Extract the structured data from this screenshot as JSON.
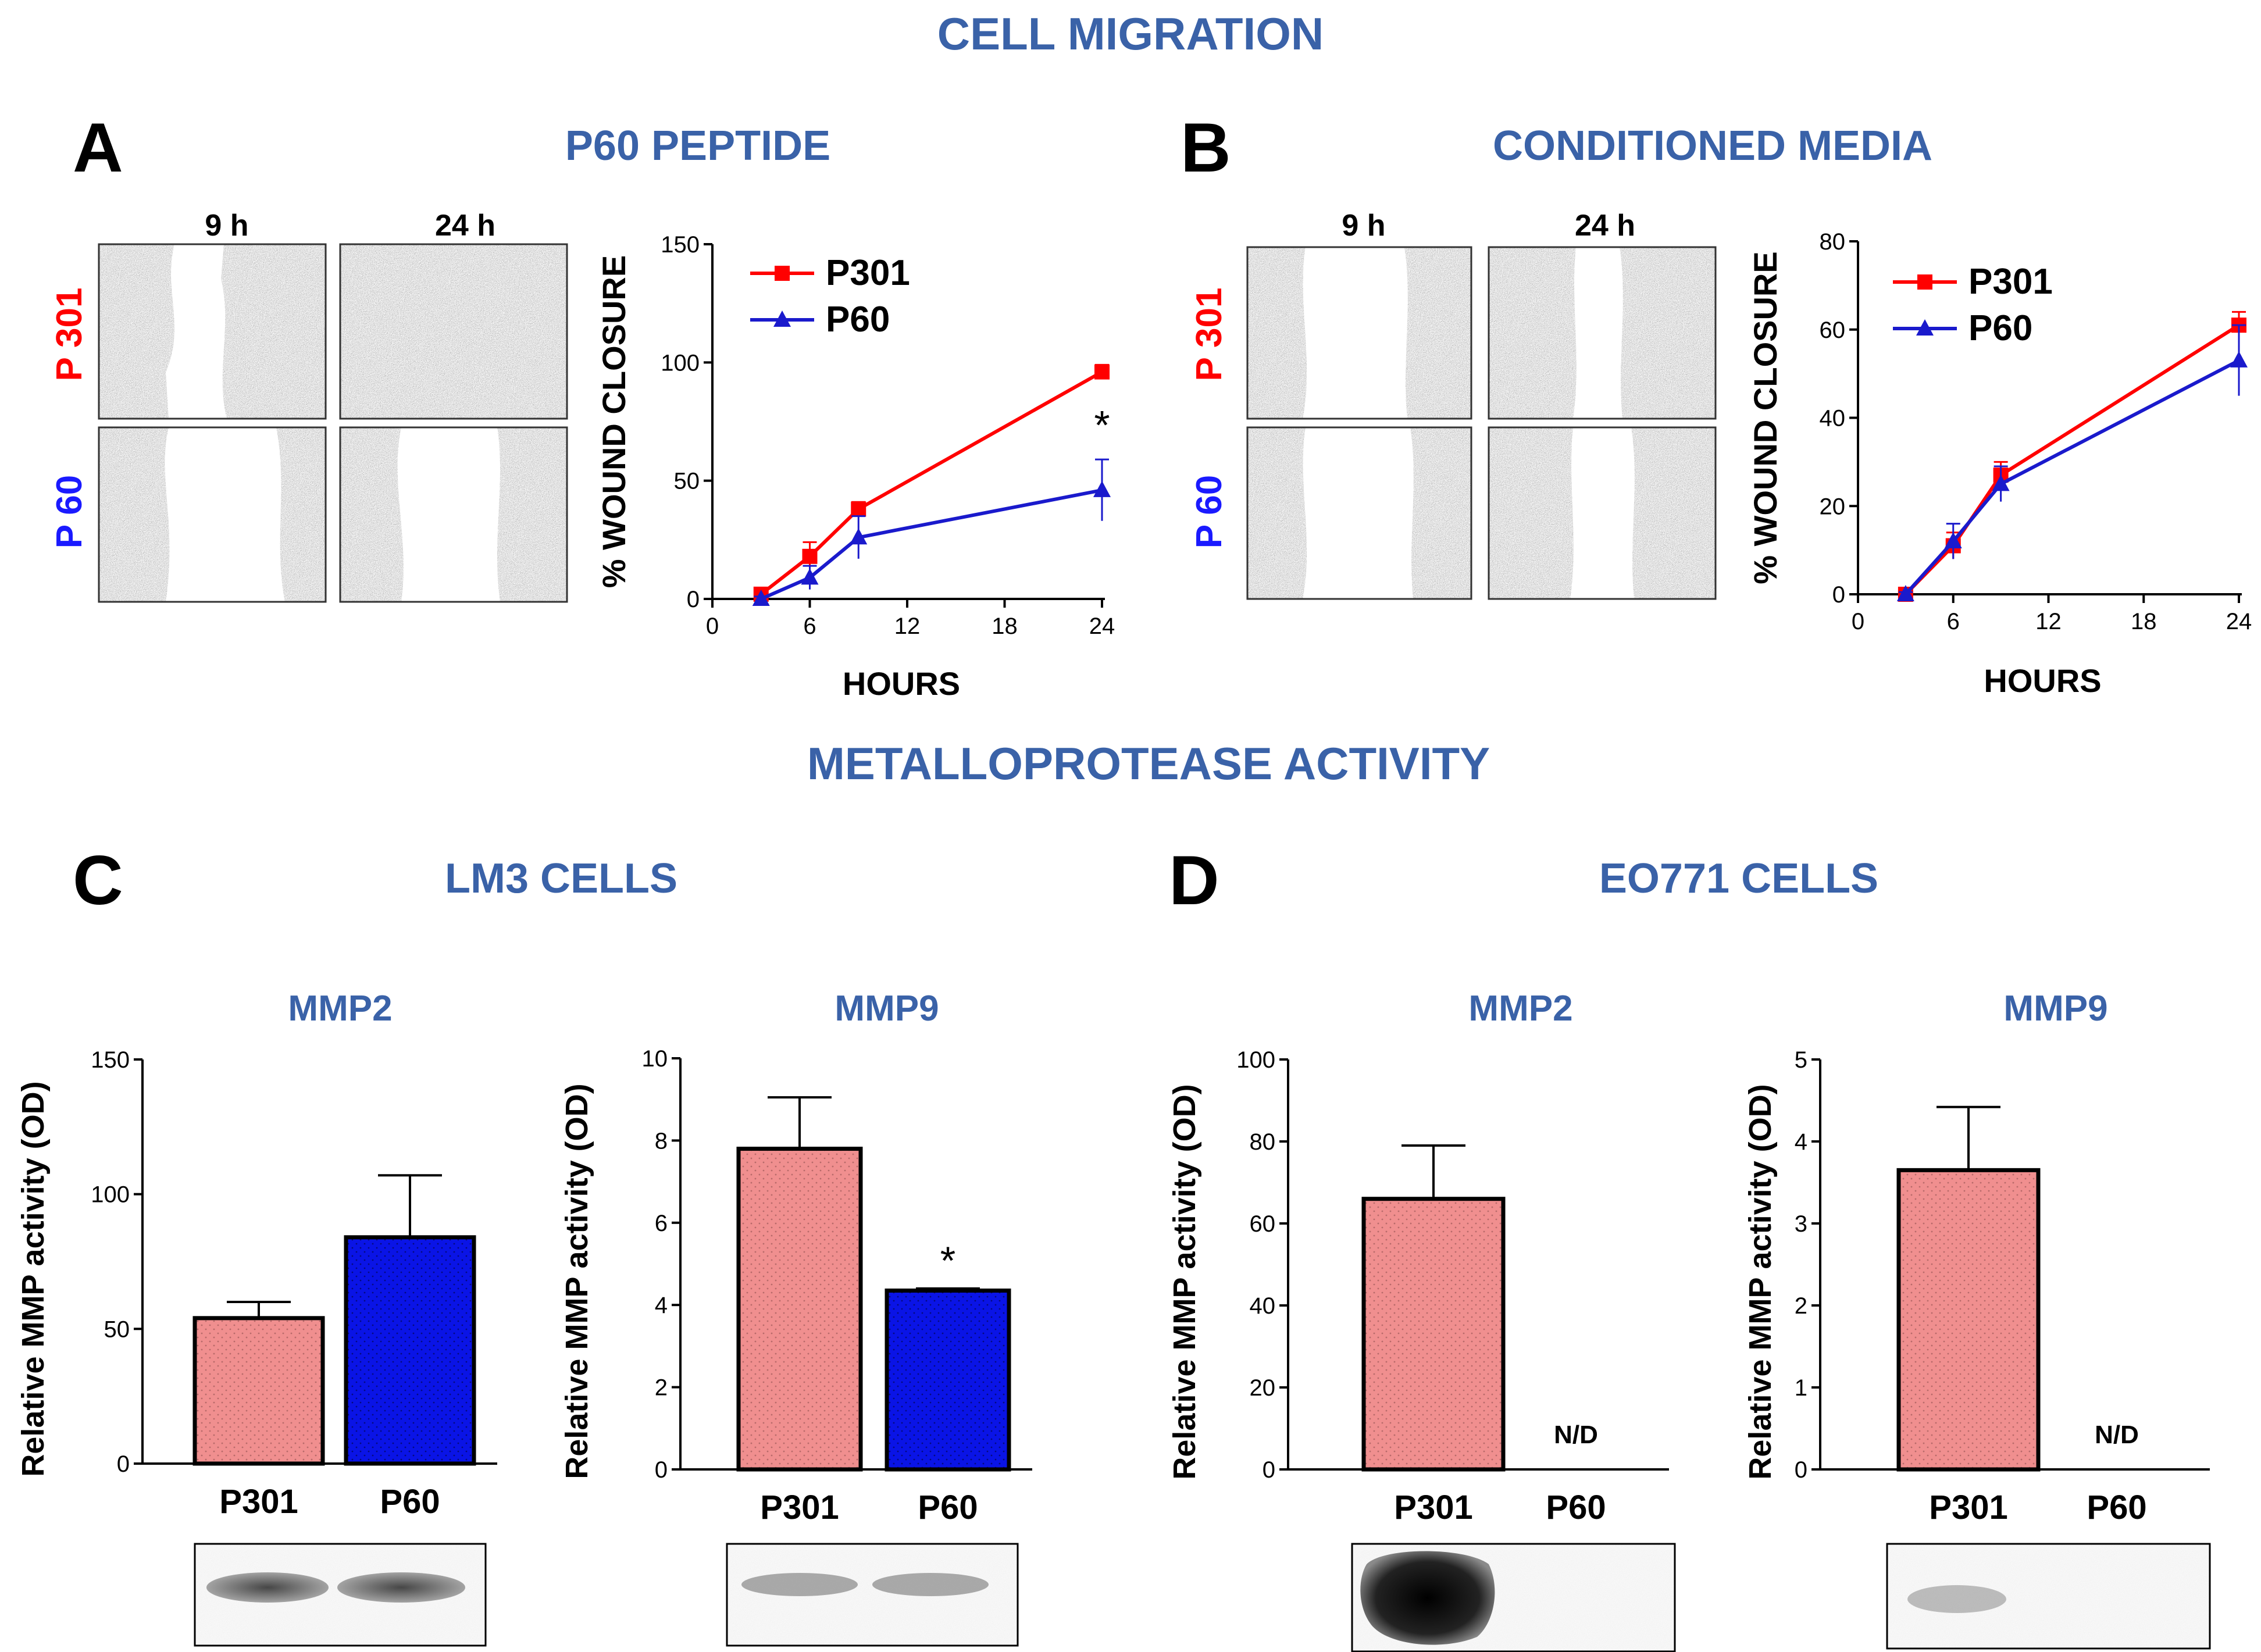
{
  "headings": {
    "cell_migration": "CELL MIGRATION",
    "metalloprotease": "METALLOPROTEASE ACTIVITY"
  },
  "panels": {
    "A": {
      "letter": "A",
      "title": "P60 PEPTIDE"
    },
    "B": {
      "letter": "B",
      "title": "CONDITIONED MEDIA"
    },
    "C": {
      "letter": "C",
      "title": "LM3 CELLS"
    },
    "D": {
      "letter": "D",
      "title": "EO771 CELLS"
    }
  },
  "micrographs": {
    "time_9h": "9 h",
    "time_24h": "24 h",
    "row_p301": "P 301",
    "row_p60": "P 60"
  },
  "colors": {
    "title_blue": "#3a62a8",
    "p301_red": "#ff0000",
    "p60_blue": "#1a1acc",
    "bar_pink": "#f08f8f",
    "bar_blue": "#0a14e6"
  },
  "chart_data": [
    {
      "id": "A",
      "type": "line",
      "xlabel": "HOURS",
      "ylabel": "% WOUND CLOSURE",
      "xlim": [
        0,
        24
      ],
      "ylim": [
        0,
        150
      ],
      "xticks": [
        0,
        6,
        12,
        18,
        24
      ],
      "yticks": [
        0,
        50,
        100,
        150
      ],
      "legend_position": "top-left",
      "annotation": "*",
      "series": [
        {
          "name": "P301",
          "marker": "square",
          "x": [
            3,
            6,
            9,
            24
          ],
          "y": [
            2,
            18,
            38,
            96
          ],
          "err": [
            1,
            6,
            3,
            3
          ]
        },
        {
          "name": "P60",
          "marker": "triangle",
          "x": [
            3,
            6,
            9,
            24
          ],
          "y": [
            0,
            9,
            26,
            46
          ],
          "err": [
            1,
            5,
            9,
            13
          ]
        }
      ]
    },
    {
      "id": "B",
      "type": "line",
      "xlabel": "HOURS",
      "ylabel": "% WOUND CLOSURE",
      "xlim": [
        0,
        24
      ],
      "ylim": [
        0,
        80
      ],
      "xticks": [
        0,
        6,
        12,
        18,
        24
      ],
      "yticks": [
        0,
        20,
        40,
        60,
        80
      ],
      "legend_position": "top-left",
      "series": [
        {
          "name": "P301",
          "marker": "square",
          "x": [
            3,
            6,
            9,
            24
          ],
          "y": [
            0,
            11,
            27,
            61
          ],
          "err": [
            0.5,
            3,
            3,
            3
          ]
        },
        {
          "name": "P60",
          "marker": "triangle",
          "x": [
            3,
            6,
            9,
            24
          ],
          "y": [
            0,
            12,
            25,
            53
          ],
          "err": [
            0.5,
            4,
            4,
            8
          ]
        }
      ]
    },
    {
      "id": "C-MMP2",
      "type": "bar",
      "title": "MMP2",
      "ylabel": "Relative MMP activity (OD)",
      "categories": [
        "P301",
        "P60"
      ],
      "values": [
        54,
        84
      ],
      "err": [
        6,
        23
      ],
      "ylim": [
        0,
        150
      ],
      "yticks": [
        0,
        50,
        100,
        150
      ]
    },
    {
      "id": "C-MMP9",
      "type": "bar",
      "title": "MMP9",
      "ylabel": "Relative MMP activity (OD)",
      "categories": [
        "P301",
        "P60"
      ],
      "values": [
        7.8,
        4.35
      ],
      "err": [
        1.25,
        0.05
      ],
      "ylim": [
        0,
        10
      ],
      "yticks": [
        0,
        2,
        4,
        6,
        8,
        10
      ],
      "annotation": "*"
    },
    {
      "id": "D-MMP2",
      "type": "bar",
      "title": "MMP2",
      "ylabel": "Relative MMP activity (OD)",
      "categories": [
        "P301",
        "P60"
      ],
      "values": [
        66,
        null
      ],
      "err": [
        13,
        null
      ],
      "ylim": [
        0,
        100
      ],
      "yticks": [
        0,
        20,
        40,
        60,
        80,
        100
      ],
      "not_detected_label": "N/D"
    },
    {
      "id": "D-MMP9",
      "type": "bar",
      "title": "MMP9",
      "ylabel": "Relative MMP activity (OD)",
      "categories": [
        "P301",
        "P60"
      ],
      "values": [
        3.65,
        null
      ],
      "err": [
        0.77,
        null
      ],
      "ylim": [
        0,
        5
      ],
      "yticks": [
        0,
        1,
        2,
        3,
        4,
        5
      ],
      "not_detected_label": "N/D"
    }
  ]
}
